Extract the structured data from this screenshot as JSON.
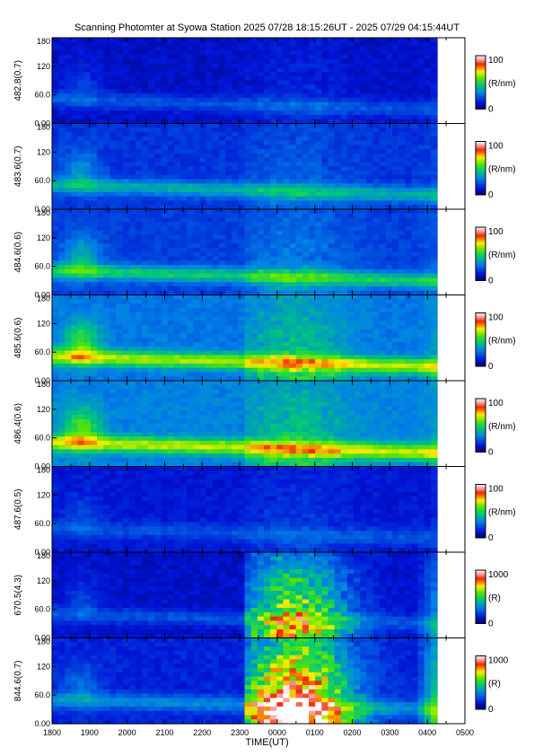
{
  "title": "Scanning Photomter at Syowa Station  2025 07/28 18:15:26UT - 2025 07/29 04:15:44UT",
  "chart_data": {
    "type": "heatmap",
    "xlabel": "TIME(UT)",
    "x_ticks": [
      "1800",
      "1900",
      "2000",
      "2100",
      "2200",
      "2300",
      "0000",
      "0100",
      "0200",
      "0300",
      "0400",
      "0500"
    ],
    "xlim_hours": [
      18,
      29
    ],
    "data_end_hours": 28.26,
    "y_ticks": [
      "0.00",
      "60.0",
      "120",
      "180"
    ],
    "ylim": [
      0,
      180
    ],
    "panels": [
      {
        "ylabel": "482.8(0.7)",
        "cb_min": "0",
        "cb_max": "100",
        "cb_unit": "(R/nm)",
        "base": 0.1,
        "band": 0.12,
        "arc": 0.05
      },
      {
        "ylabel": "483.6(0.7)",
        "cb_min": "0",
        "cb_max": "100",
        "cb_unit": "(R/nm)",
        "base": 0.17,
        "band": 0.22,
        "arc": 0.08
      },
      {
        "ylabel": "484.6(0.6)",
        "cb_min": "0",
        "cb_max": "100",
        "cb_unit": "(R/nm)",
        "base": 0.19,
        "band": 0.28,
        "arc": 0.12
      },
      {
        "ylabel": "485.6(0.6)",
        "cb_min": "0",
        "cb_max": "100",
        "cb_unit": "(R/nm)",
        "base": 0.28,
        "band": 0.36,
        "arc": 0.18
      },
      {
        "ylabel": "486.4(0.6)",
        "cb_min": "0",
        "cb_max": "100",
        "cb_unit": "(R/nm)",
        "base": 0.3,
        "band": 0.36,
        "arc": 0.16
      },
      {
        "ylabel": "487.6(0.5)",
        "cb_min": "0",
        "cb_max": "100",
        "cb_unit": "(R/nm)",
        "base": 0.12,
        "band": 0.1,
        "arc": 0.06
      },
      {
        "ylabel": "670.5(4.3)",
        "cb_min": "0",
        "cb_max": "1000",
        "cb_unit": "(R)",
        "base": 0.1,
        "band": 0.12,
        "arc": 0.55
      },
      {
        "ylabel": "844.6(0.7)",
        "cb_min": "0",
        "cb_max": "1000",
        "cb_unit": "(R)",
        "base": 0.14,
        "band": 0.18,
        "arc": 0.85
      }
    ]
  }
}
